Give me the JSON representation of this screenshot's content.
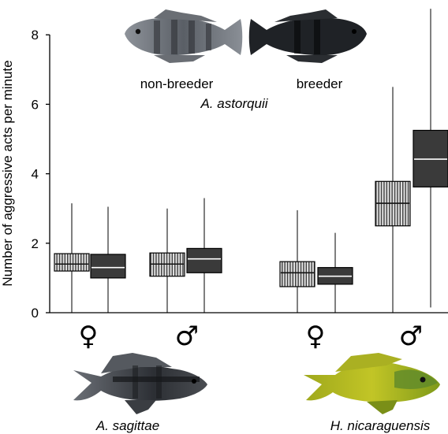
{
  "chart_data": {
    "type": "boxplot",
    "ylabel": "Number of aggressive acts per minute",
    "ylim": [
      0,
      8
    ],
    "yticks": [
      "0",
      "2",
      "4",
      "6",
      "8"
    ],
    "sex_symbols": {
      "female": "♀",
      "male": "♂"
    },
    "legend": {
      "non_breeder": "non-breeder",
      "breeder": "breeder",
      "species": "A. astorquii"
    },
    "bottom_species": [
      "A. sagittae",
      "H. nicaraguensis"
    ],
    "groups": [
      {
        "label": "♀",
        "status": "non-breeder",
        "min": 0,
        "q1": 1.2,
        "median": 1.4,
        "q3": 1.7,
        "max": 3.15
      },
      {
        "label": "♀",
        "status": "breeder",
        "min": 0,
        "q1": 1.0,
        "median": 1.3,
        "q3": 1.68,
        "max": 3.05
      },
      {
        "label": "♂",
        "status": "non-breeder",
        "min": 0,
        "q1": 1.05,
        "median": 1.4,
        "q3": 1.72,
        "max": 3.0
      },
      {
        "label": "♂",
        "status": "breeder",
        "min": 0,
        "q1": 1.15,
        "median": 1.55,
        "q3": 1.85,
        "max": 3.3
      },
      {
        "label": "♀",
        "status": "non-breeder",
        "min": 0,
        "q1": 0.75,
        "median": 1.15,
        "q3": 1.47,
        "max": 2.95
      },
      {
        "label": "♀",
        "status": "breeder",
        "min": 0,
        "q1": 0.82,
        "median": 1.05,
        "q3": 1.3,
        "max": 2.3
      },
      {
        "label": "♂",
        "status": "non-breeder",
        "min": 0,
        "q1": 2.5,
        "median": 3.15,
        "q3": 3.78,
        "max": 6.5
      },
      {
        "label": "♂",
        "status": "breeder",
        "min": 0.15,
        "q1": 3.62,
        "median": 4.42,
        "q3": 5.25,
        "max": 8.75
      }
    ]
  }
}
